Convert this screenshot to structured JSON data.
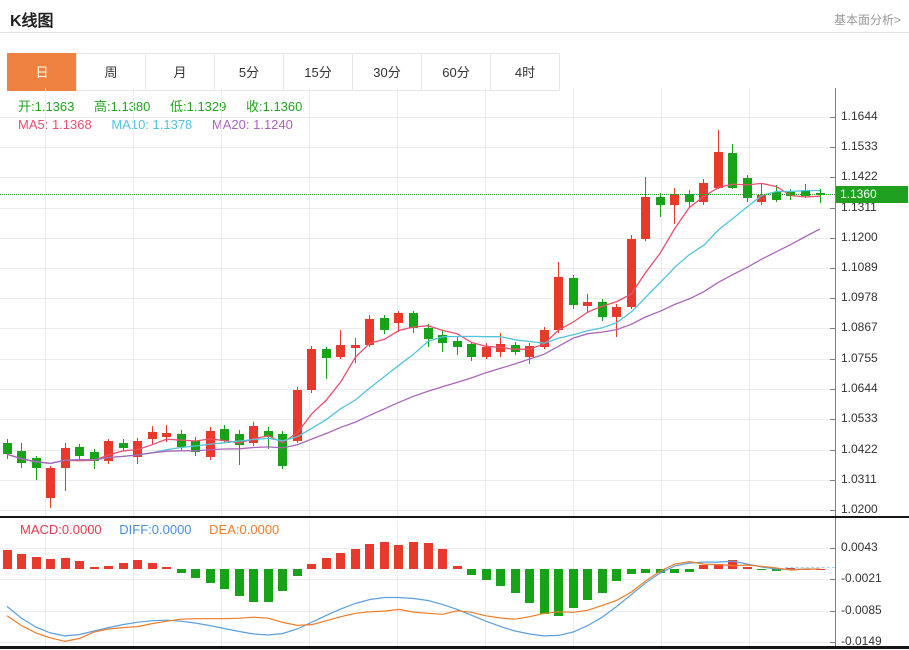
{
  "header": {
    "title": "K线图",
    "link": "基本面分析>"
  },
  "tabs": {
    "items": [
      "日",
      "周",
      "月",
      "5分",
      "15分",
      "30分",
      "60分",
      "4时"
    ],
    "names": [
      "tab-day",
      "tab-week",
      "tab-month",
      "tab-5min",
      "tab-15min",
      "tab-30min",
      "tab-60min",
      "tab-4hour"
    ],
    "active_index": 0
  },
  "quote": {
    "open": "开:1.1363",
    "high": "高:1.1380",
    "low": "低:1.1329",
    "close": "收:1.1360",
    "ma5": "MA5: 1.1368",
    "ma10": "MA10: 1.1378",
    "ma20": "MA20: 1.1240",
    "macd": "MACD:0.0000",
    "diff": "DIFF:0.0000",
    "dea": "DEA:0.0000"
  },
  "axis": {
    "current_price": "1.1360"
  },
  "colors": {
    "up": "#e8392d",
    "down": "#17a317",
    "ma5": "#e8506e",
    "ma10": "#53c3dd",
    "ma20": "#aa66b8",
    "diff_line": "#5aa0dd",
    "dea_line": "#ef7c28",
    "tab_accent": "#ef8240",
    "price_badge": "#1fa01f",
    "ohlc_text": "#21a21e"
  },
  "chart_data": {
    "type": "candlestick+macd",
    "title": "K线图 (daily K-line with MA5/MA10/MA20 and MACD panel)",
    "price_axis_ticks": [
      1.1644,
      1.1533,
      1.1422,
      1.1311,
      1.12,
      1.1089,
      1.0978,
      1.0867,
      1.0755,
      1.0644,
      1.0533,
      1.0422,
      1.0311,
      1.02
    ],
    "price_axis_range": [
      1.02,
      1.1644
    ],
    "macd_axis_ticks": [
      0.0043,
      -0.0021,
      -0.0085,
      -0.0149
    ],
    "current_price": 1.136,
    "legend": [
      "MA5",
      "MA10",
      "MA20",
      "MACD",
      "DIFF",
      "DEA"
    ],
    "candles_ohlc": [
      [
        1.0448,
        1.046,
        1.0388,
        1.0405
      ],
      [
        1.0415,
        1.0446,
        1.0353,
        1.0372
      ],
      [
        1.0391,
        1.04,
        1.031,
        1.0354
      ],
      [
        1.0243,
        1.036,
        1.0206,
        1.0354
      ],
      [
        1.0355,
        1.0445,
        1.027,
        1.0428
      ],
      [
        1.043,
        1.0442,
        1.0388,
        1.0398
      ],
      [
        1.0412,
        1.0425,
        1.0352,
        1.038
      ],
      [
        1.038,
        1.0462,
        1.037,
        1.0452
      ],
      [
        1.0448,
        1.046,
        1.0418,
        1.0428
      ],
      [
        1.0395,
        1.0465,
        1.0368,
        1.0453
      ],
      [
        1.0461,
        1.051,
        1.044,
        1.0487
      ],
      [
        1.047,
        1.0512,
        1.0448,
        1.0482
      ],
      [
        1.048,
        1.0495,
        1.042,
        1.0433
      ],
      [
        1.0455,
        1.047,
        1.04,
        1.0413
      ],
      [
        1.0394,
        1.0505,
        1.0385,
        1.0491
      ],
      [
        1.0497,
        1.0512,
        1.0445,
        1.0455
      ],
      [
        1.048,
        1.0495,
        1.0365,
        1.044
      ],
      [
        1.0445,
        1.0522,
        1.0435,
        1.0509
      ],
      [
        1.049,
        1.0506,
        1.0425,
        1.047
      ],
      [
        1.048,
        1.049,
        1.035,
        1.0361
      ],
      [
        1.0455,
        1.0652,
        1.0445,
        1.064
      ],
      [
        1.064,
        1.0802,
        1.063,
        1.079
      ],
      [
        1.079,
        1.08,
        1.068,
        1.076
      ],
      [
        1.0762,
        1.0862,
        1.0755,
        1.0808
      ],
      [
        1.0795,
        1.0832,
        1.074,
        1.0807
      ],
      [
        1.0806,
        1.0917,
        1.08,
        1.09
      ],
      [
        1.0905,
        1.0917,
        1.0848,
        1.0861
      ],
      [
        1.0887,
        1.093,
        1.0855,
        1.0924
      ],
      [
        1.0924,
        1.0932,
        1.0852,
        1.087
      ],
      [
        1.087,
        1.0882,
        1.08,
        1.083
      ],
      [
        1.0842,
        1.0856,
        1.078,
        1.0815
      ],
      [
        1.082,
        1.0834,
        1.0768,
        1.08
      ],
      [
        1.081,
        1.0816,
        1.0748,
        1.0762
      ],
      [
        1.0762,
        1.0814,
        1.0754,
        1.08
      ],
      [
        1.0782,
        1.0852,
        1.0762,
        1.081
      ],
      [
        1.0806,
        1.0816,
        1.0768,
        1.078
      ],
      [
        1.0762,
        1.0815,
        1.0738,
        1.0802
      ],
      [
        1.08,
        1.0872,
        1.079,
        1.0861
      ],
      [
        1.0861,
        1.1112,
        1.085,
        1.1056
      ],
      [
        1.1052,
        1.1065,
        1.0938,
        1.0953
      ],
      [
        1.095,
        1.0992,
        1.0928,
        1.0964
      ],
      [
        1.0964,
        1.0976,
        1.0893,
        1.091
      ],
      [
        1.091,
        1.0956,
        1.0835,
        1.0945
      ],
      [
        1.0945,
        1.1212,
        1.0938,
        1.1197
      ],
      [
        1.1197,
        1.1422,
        1.119,
        1.135
      ],
      [
        1.135,
        1.1366,
        1.1278,
        1.132
      ],
      [
        1.132,
        1.1382,
        1.125,
        1.136
      ],
      [
        1.136,
        1.1376,
        1.1308,
        1.133
      ],
      [
        1.133,
        1.1418,
        1.132,
        1.14
      ],
      [
        1.1383,
        1.1596,
        1.1378,
        1.1515
      ],
      [
        1.1512,
        1.1545,
        1.138,
        1.1383
      ],
      [
        1.142,
        1.143,
        1.1332,
        1.1345
      ],
      [
        1.133,
        1.14,
        1.1322,
        1.1358
      ],
      [
        1.1368,
        1.1395,
        1.1332,
        1.134
      ],
      [
        1.1368,
        1.1378,
        1.134,
        1.1352
      ],
      [
        1.1372,
        1.1398,
        1.1345,
        1.1355
      ],
      [
        1.1363,
        1.138,
        1.1329,
        1.136
      ]
    ],
    "macd_histogram": [
      0.0038,
      0.003,
      0.0024,
      0.002,
      0.0022,
      0.0016,
      0.0004,
      0.0006,
      0.0012,
      0.0018,
      0.0012,
      0.0004,
      -0.0008,
      -0.0018,
      -0.0028,
      -0.004,
      -0.0054,
      -0.0068,
      -0.0068,
      -0.0045,
      -0.0015,
      0.001,
      0.0022,
      0.0032,
      0.004,
      0.005,
      0.0055,
      0.0048,
      0.0055,
      0.0052,
      0.004,
      0.0006,
      -0.0012,
      -0.0022,
      -0.0035,
      -0.0048,
      -0.007,
      -0.0092,
      -0.0096,
      -0.008,
      -0.0062,
      -0.0048,
      -0.0025,
      -0.001,
      -0.0008,
      -0.0008,
      -0.0008,
      -0.0006,
      0.0008,
      0.001,
      0.0018,
      0.0004,
      -0.0003,
      -0.0004,
      0.0002,
      0.0001,
      0.0
    ],
    "diff_line": [
      -0.0076,
      -0.01,
      -0.0118,
      -0.013,
      -0.0136,
      -0.0133,
      -0.0126,
      -0.0119,
      -0.0113,
      -0.0108,
      -0.0105,
      -0.0104,
      -0.0106,
      -0.011,
      -0.0115,
      -0.0121,
      -0.0127,
      -0.0132,
      -0.0134,
      -0.0131,
      -0.0122,
      -0.0108,
      -0.0094,
      -0.0081,
      -0.007,
      -0.0062,
      -0.0058,
      -0.0058,
      -0.006,
      -0.0064,
      -0.0072,
      -0.0082,
      -0.0094,
      -0.0106,
      -0.0117,
      -0.0126,
      -0.0132,
      -0.0136,
      -0.0135,
      -0.0128,
      -0.0115,
      -0.0098,
      -0.0076,
      -0.0052,
      -0.0028,
      -0.0008,
      0.0006,
      0.0012,
      0.0014,
      0.0014,
      0.0016,
      0.001,
      0.0004,
      0.0,
      -0.0001,
      0.0,
      0.0
    ]
  }
}
